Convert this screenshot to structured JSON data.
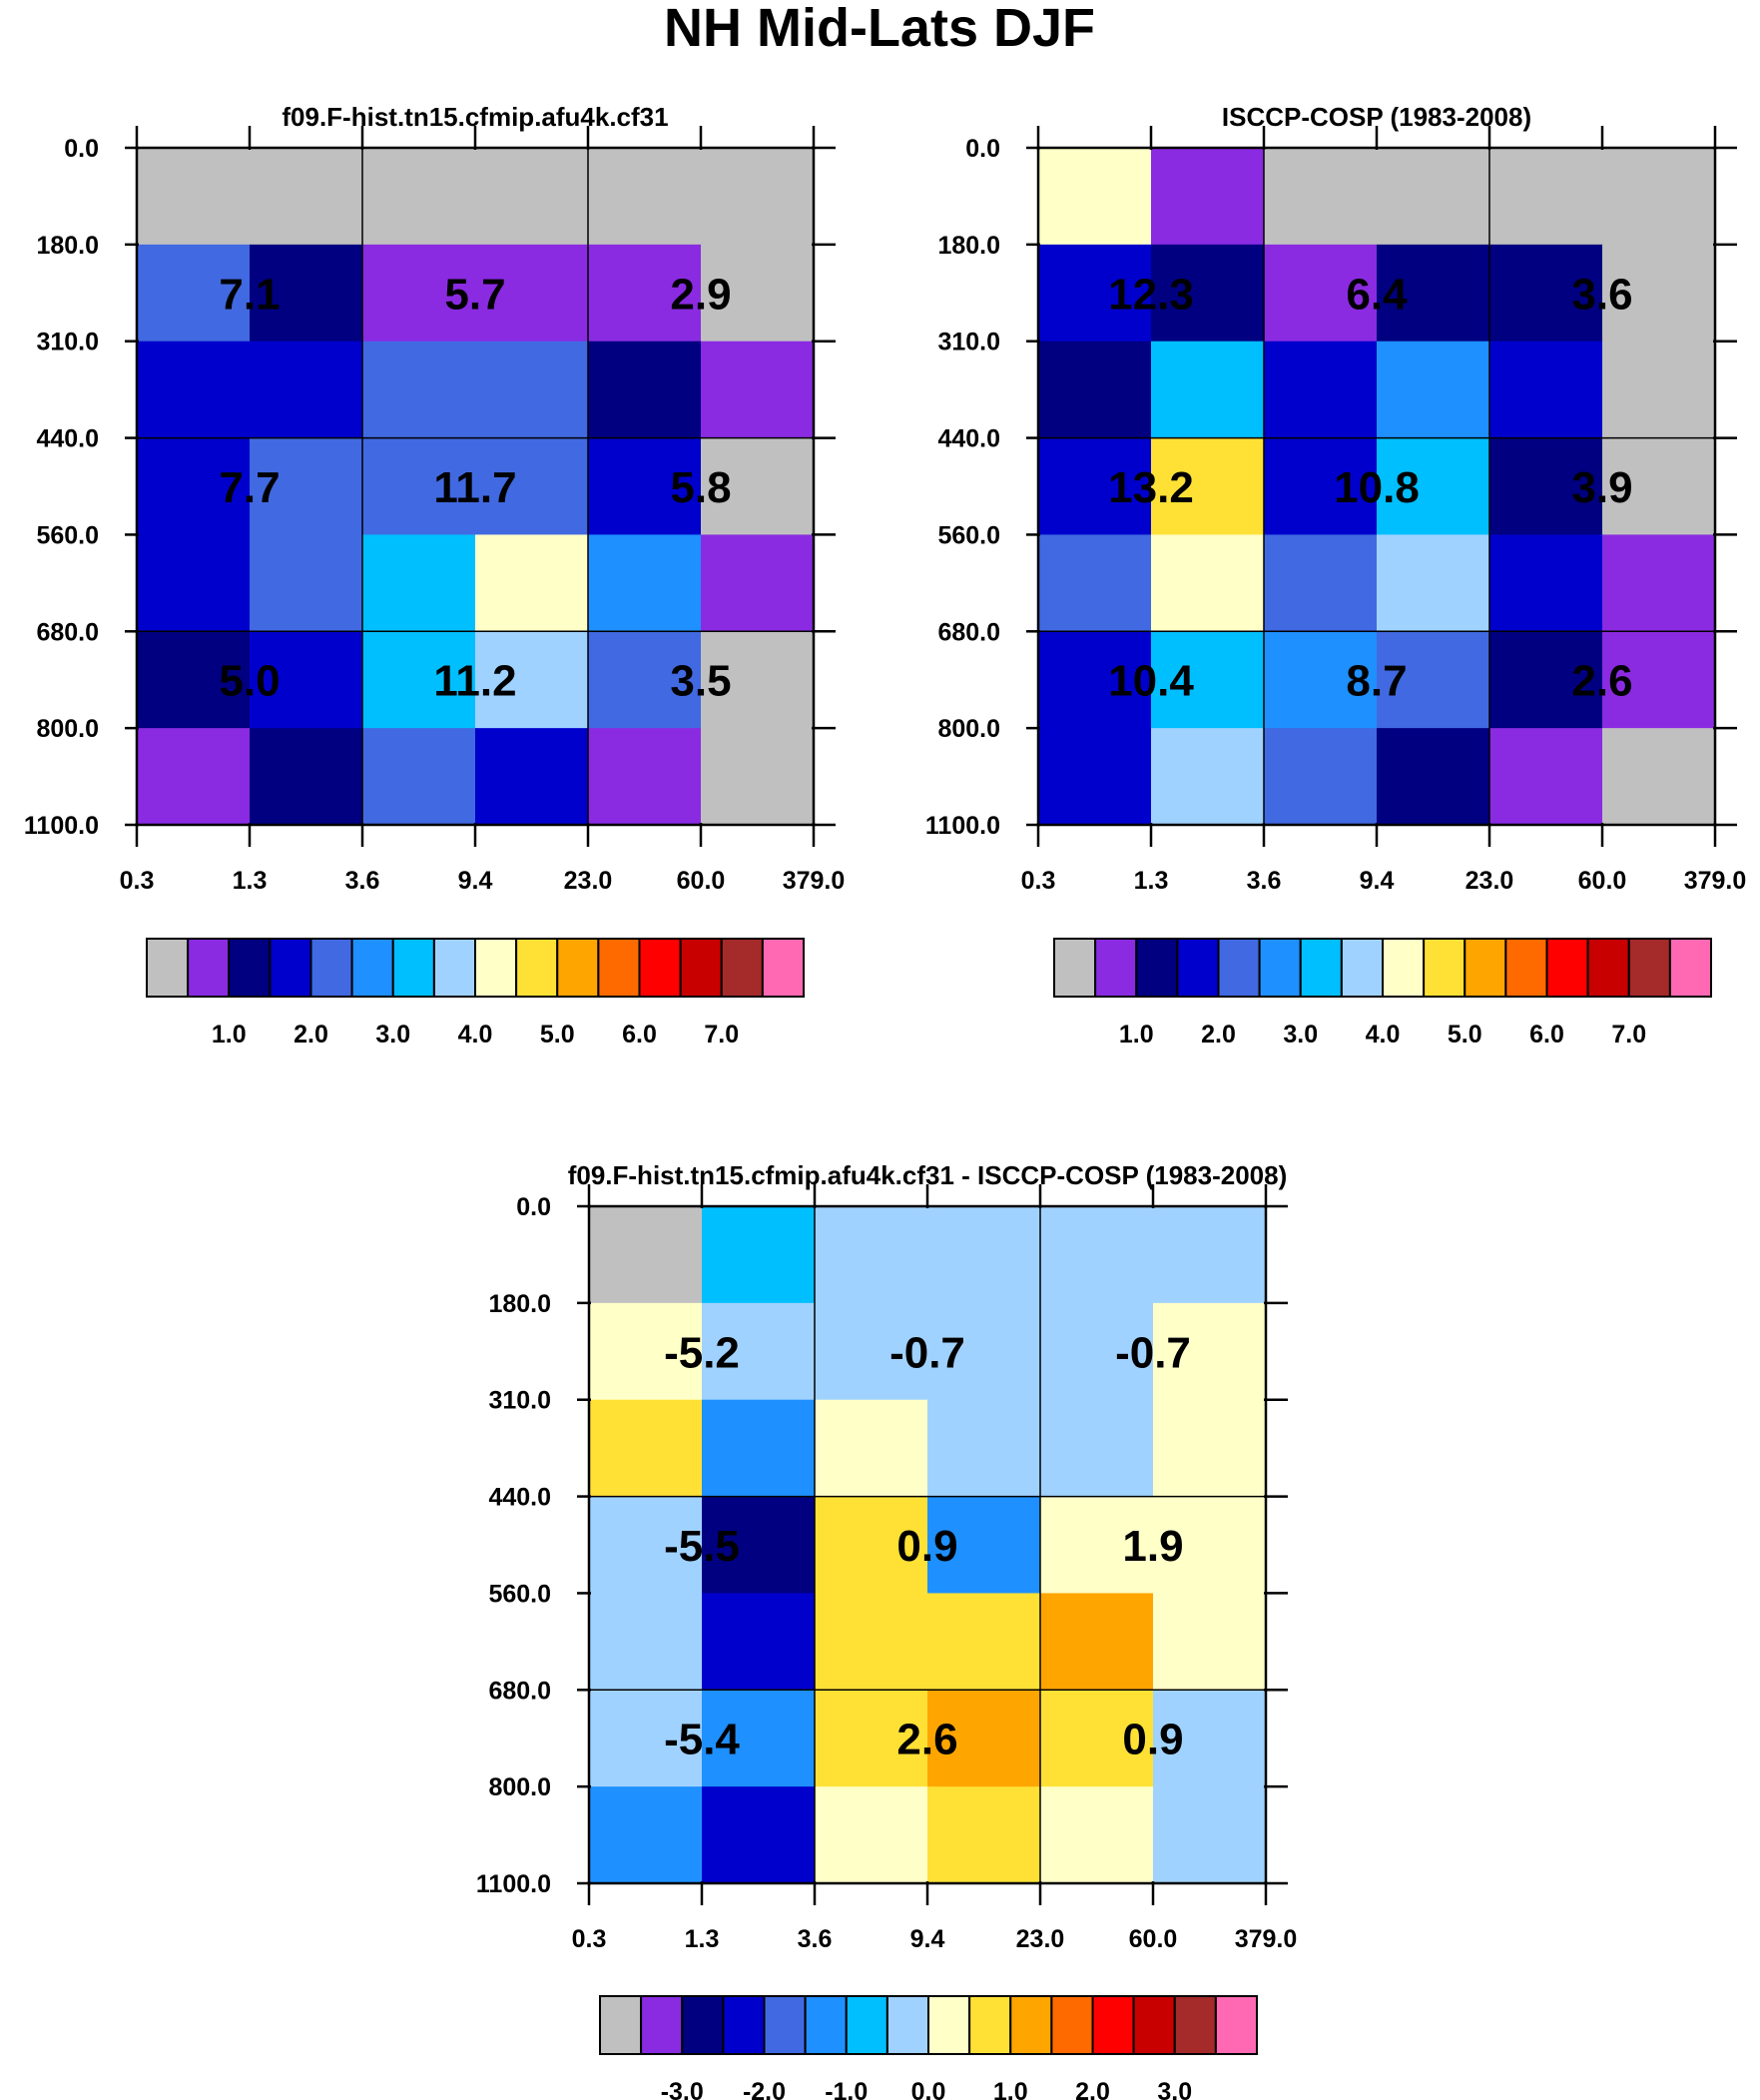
{
  "title": "NH Mid-Lats DJF",
  "colorbars": {
    "absolute": {
      "colors": [
        "#c0c0c0",
        "#8a2be2",
        "#000080",
        "#0000cd",
        "#4169e1",
        "#1e90ff",
        "#00bfff",
        "#a0d2ff",
        "#ffffc8",
        "#ffe135",
        "#ffa500",
        "#ff6a00",
        "#ff0000",
        "#c80000",
        "#a52a2a",
        "#ff69b4"
      ],
      "labels": [
        "1.0",
        "2.0",
        "3.0",
        "4.0",
        "5.0",
        "6.0",
        "7.0"
      ]
    },
    "difference": {
      "colors": [
        "#c0c0c0",
        "#8a2be2",
        "#000080",
        "#0000cd",
        "#4169e1",
        "#1e90ff",
        "#00bfff",
        "#a0d2ff",
        "#ffffc8",
        "#ffe135",
        "#ffa500",
        "#ff6a00",
        "#ff0000",
        "#c80000",
        "#a52a2a",
        "#ff69b4"
      ],
      "labels": [
        "-3.0",
        "-2.0",
        "-1.0",
        "0.0",
        "1.0",
        "2.0",
        "3.0"
      ]
    }
  },
  "chart_data": [
    {
      "type": "heatmap",
      "title": "f09.F-hist.tn15.cfmip.afu4k.cf31",
      "xticks": [
        "0.3",
        "1.3",
        "3.6",
        "9.4",
        "23.0",
        "60.0",
        "379.0"
      ],
      "yticks": [
        "0.0",
        "180.0",
        "310.0",
        "440.0",
        "560.0",
        "680.0",
        "800.0",
        "1100.0"
      ],
      "colorbar": "absolute",
      "cells": [
        [
          0,
          0,
          0,
          0,
          0,
          0
        ],
        [
          4,
          2,
          1,
          1,
          1,
          0
        ],
        [
          3,
          3,
          4,
          4,
          2,
          1
        ],
        [
          3,
          4,
          4,
          4,
          3,
          0
        ],
        [
          3,
          4,
          6,
          8,
          5,
          1
        ],
        [
          2,
          3,
          6,
          7,
          4,
          0
        ],
        [
          1,
          2,
          4,
          3,
          1,
          0
        ]
      ],
      "annotations": [
        [
          "7.1",
          "5.7",
          "2.9"
        ],
        [
          "7.7",
          "11.7",
          "5.8"
        ],
        [
          "5.0",
          "11.2",
          "3.5"
        ]
      ]
    },
    {
      "type": "heatmap",
      "title": "ISCCP-COSP (1983-2008)",
      "xticks": [
        "0.3",
        "1.3",
        "3.6",
        "9.4",
        "23.0",
        "60.0",
        "379.0"
      ],
      "yticks": [
        "0.0",
        "180.0",
        "310.0",
        "440.0",
        "560.0",
        "680.0",
        "800.0",
        "1100.0"
      ],
      "colorbar": "absolute",
      "cells": [
        [
          8,
          1,
          0,
          0,
          0,
          0
        ],
        [
          3,
          2,
          1,
          2,
          2,
          0
        ],
        [
          2,
          6,
          3,
          5,
          3,
          0
        ],
        [
          3,
          9,
          3,
          6,
          2,
          0
        ],
        [
          4,
          8,
          4,
          7,
          3,
          1
        ],
        [
          3,
          6,
          5,
          4,
          2,
          1
        ],
        [
          3,
          7,
          4,
          2,
          1,
          0
        ]
      ],
      "annotations": [
        [
          "12.3",
          "6.4",
          "3.6"
        ],
        [
          "13.2",
          "10.8",
          "3.9"
        ],
        [
          "10.4",
          "8.7",
          "2.6"
        ]
      ]
    },
    {
      "type": "heatmap",
      "title": "f09.F-hist.tn15.cfmip.afu4k.cf31 - ISCCP-COSP (1983-2008)",
      "xticks": [
        "0.3",
        "1.3",
        "3.6",
        "9.4",
        "23.0",
        "60.0",
        "379.0"
      ],
      "yticks": [
        "0.0",
        "180.0",
        "310.0",
        "440.0",
        "560.0",
        "680.0",
        "800.0",
        "1100.0"
      ],
      "colorbar": "difference",
      "cells": [
        [
          0,
          6,
          7,
          7,
          7,
          7
        ],
        [
          8,
          7,
          7,
          7,
          7,
          8
        ],
        [
          9,
          5,
          8,
          7,
          7,
          8
        ],
        [
          7,
          2,
          9,
          5,
          8,
          8
        ],
        [
          7,
          3,
          9,
          9,
          10,
          8
        ],
        [
          7,
          5,
          9,
          10,
          9,
          7
        ],
        [
          5,
          3,
          8,
          9,
          8,
          7
        ]
      ],
      "annotations": [
        [
          "-5.2",
          "-0.7",
          "-0.7"
        ],
        [
          "-5.5",
          "0.9",
          "1.9"
        ],
        [
          "-5.4",
          "2.6",
          "0.9"
        ]
      ]
    }
  ]
}
